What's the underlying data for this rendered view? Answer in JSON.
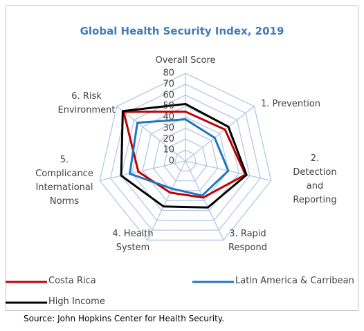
{
  "chart_data": {
    "type": "radar",
    "title": "Global Health Security Index, 2019",
    "categories": [
      "Overall Score",
      "1. Prevention",
      "2. Detection\nand Reporting",
      "3. Rapid\nRespond",
      "4. Health\nSystem",
      "5.\nComplicance\nInternational\nNorms",
      "6. Risk\nEnvironment"
    ],
    "series": [
      {
        "name": "Costa Rica",
        "color": "#c00000",
        "values": [
          45,
          46,
          56,
          37,
          32,
          44,
          72
        ]
      },
      {
        "name": "Latin America & Carribean",
        "color": "#1f77c0",
        "values": [
          38,
          34,
          40,
          35,
          28,
          52,
          56
        ]
      },
      {
        "name": "High Income",
        "color": "#000000",
        "values": [
          52,
          50,
          57,
          47,
          46,
          60,
          73
        ]
      }
    ],
    "ylim": [
      0,
      80
    ],
    "yticks": [
      0,
      10,
      20,
      30,
      40,
      50,
      60,
      70,
      80
    ],
    "grid": true,
    "source": "Source: John Hopkins Center for Health Security."
  }
}
